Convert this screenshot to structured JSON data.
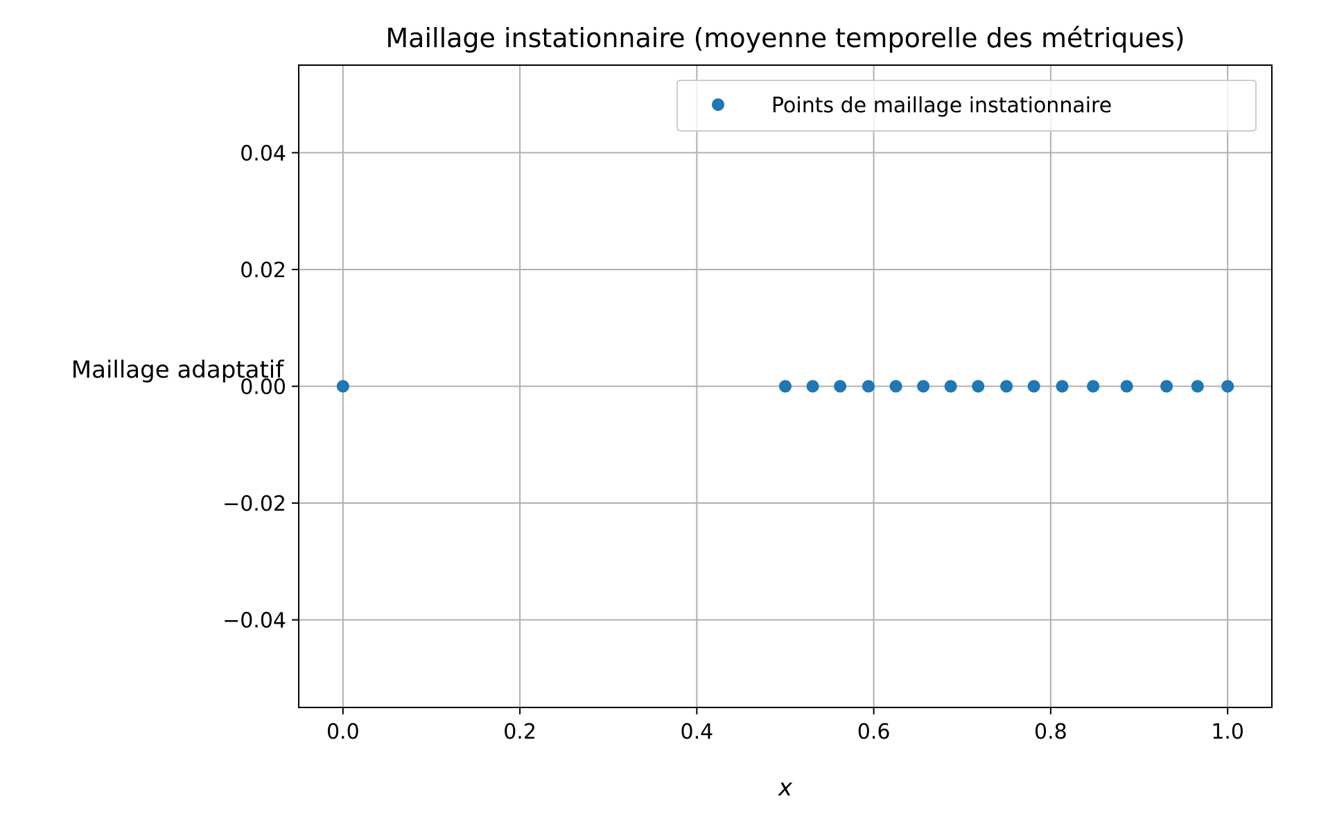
{
  "chart_data": {
    "type": "scatter",
    "title": "Maillage instationnaire (moyenne temporelle des métriques)",
    "xlabel": "x",
    "ylabel": "Maillage adaptatif",
    "xlim": [
      -0.05,
      1.05
    ],
    "ylim": [
      -0.055,
      0.055
    ],
    "xticks": [
      0.0,
      0.2,
      0.4,
      0.6,
      0.8,
      1.0
    ],
    "xtick_labels": [
      "0.0",
      "0.2",
      "0.4",
      "0.6",
      "0.8",
      "1.0"
    ],
    "yticks": [
      -0.04,
      -0.02,
      0.0,
      0.02,
      0.04
    ],
    "ytick_labels": [
      "−0.04",
      "−0.02",
      "0.00",
      "0.02",
      "0.04"
    ],
    "grid": true,
    "legend_position": "top-right",
    "series": [
      {
        "name": "Points de maillage instationnaire",
        "color": "#1f77b4",
        "marker": "circle",
        "x": [
          0.0,
          0.5,
          0.531,
          0.562,
          0.594,
          0.625,
          0.656,
          0.687,
          0.718,
          0.75,
          0.781,
          0.813,
          0.848,
          0.886,
          0.931,
          0.966,
          1.0
        ],
        "y": [
          0,
          0,
          0,
          0,
          0,
          0,
          0,
          0,
          0,
          0,
          0,
          0,
          0,
          0,
          0,
          0,
          0
        ]
      }
    ]
  }
}
